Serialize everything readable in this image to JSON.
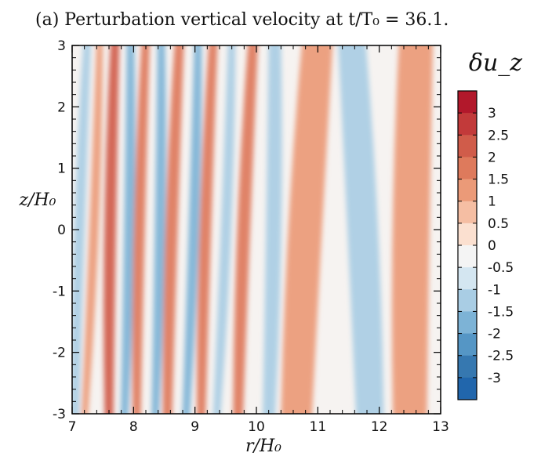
{
  "chart_data": {
    "type": "heatmap",
    "title": "(a) Perturbation vertical velocity at t/T₀ = 36.1.",
    "xlabel": "r/H₀",
    "ylabel": "z/H₀",
    "colorbar_title": "δu_z",
    "xlim": [
      7,
      13
    ],
    "ylim": [
      -3,
      3
    ],
    "x_ticks": [
      7,
      8,
      9,
      10,
      11,
      12,
      13
    ],
    "y_ticks": [
      -3,
      -2,
      -1,
      0,
      1,
      2,
      3
    ],
    "color_range": [
      -3.5,
      3.5
    ],
    "colorbar_ticks": [
      {
        "value": 3,
        "label": "3"
      },
      {
        "value": 2.5,
        "label": "2.5"
      },
      {
        "value": 2,
        "label": "2"
      },
      {
        "value": 1.5,
        "label": "1.5"
      },
      {
        "value": 1,
        "label": "1"
      },
      {
        "value": 0.5,
        "label": "0.5"
      },
      {
        "value": 0,
        "label": "0"
      },
      {
        "value": -0.5,
        "label": "-0.5"
      },
      {
        "value": -1,
        "label": "-1"
      },
      {
        "value": -1.5,
        "label": "-1.5"
      },
      {
        "value": -2,
        "label": "-2"
      },
      {
        "value": -2.5,
        "label": "-2.5"
      },
      {
        "value": -3,
        "label": "-3"
      }
    ],
    "colorbar_colors": [
      "#b2182b",
      "#c23a3a",
      "#d05c4a",
      "#de7a5c",
      "#eb9a78",
      "#f5bea3",
      "#fbe0d0",
      "#f4f4f4",
      "#d4e6f1",
      "#a9cde4",
      "#7db3d6",
      "#5596c5",
      "#3678b0",
      "#2166ac"
    ],
    "stripes": [
      {
        "r_top": 7.25,
        "r_bottom": 7.05,
        "width": 0.12,
        "value": -1.2
      },
      {
        "r_top": 7.45,
        "r_bottom": 7.2,
        "width": 0.1,
        "value": 1.4
      },
      {
        "r_top": 7.7,
        "r_bottom": 7.6,
        "width": 0.14,
        "value": 2.2
      },
      {
        "r_top": 7.95,
        "r_bottom": 7.85,
        "width": 0.12,
        "value": -1.5
      },
      {
        "r_top": 8.2,
        "r_bottom": 8.05,
        "width": 0.13,
        "value": 1.8
      },
      {
        "r_top": 8.45,
        "r_bottom": 8.35,
        "width": 0.12,
        "value": -1.6
      },
      {
        "r_top": 8.75,
        "r_bottom": 8.55,
        "width": 0.15,
        "value": 1.6
      },
      {
        "r_top": 9.05,
        "r_bottom": 8.85,
        "width": 0.12,
        "value": -1.7
      },
      {
        "r_top": 9.3,
        "r_bottom": 9.1,
        "width": 0.14,
        "value": 1.7
      },
      {
        "r_top": 9.6,
        "r_bottom": 9.35,
        "width": 0.12,
        "value": -1.4
      },
      {
        "r_top": 9.95,
        "r_bottom": 9.7,
        "width": 0.16,
        "value": 1.6
      },
      {
        "r_top": 10.3,
        "r_bottom": 10.2,
        "width": 0.2,
        "value": -1.2
      },
      {
        "r_top": 11.0,
        "r_bottom": 10.65,
        "width": 0.5,
        "value": 1.5
      },
      {
        "r_top": 11.55,
        "r_bottom": 11.85,
        "width": 0.45,
        "value": -1.2
      },
      {
        "r_top": 12.6,
        "r_bottom": 12.5,
        "width": 0.55,
        "value": 1.5
      }
    ]
  }
}
